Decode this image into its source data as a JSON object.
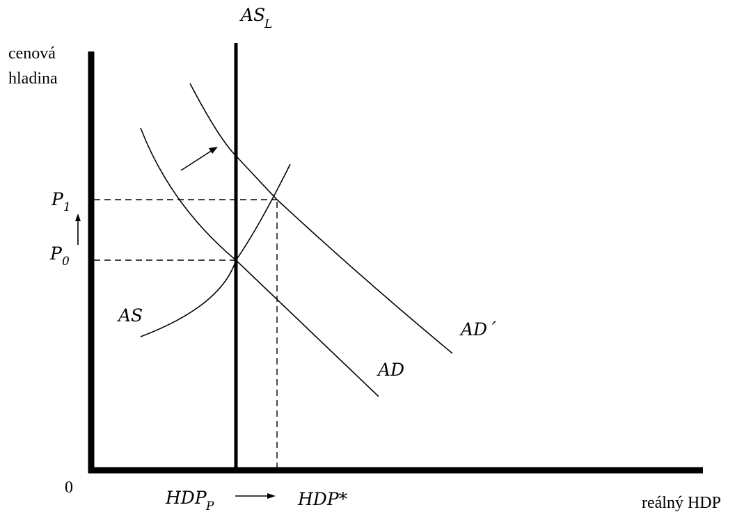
{
  "axes": {
    "y_label_line1": "cenová",
    "y_label_line2": "hladina",
    "x_label": "reálný HDP",
    "origin": "0"
  },
  "curves": {
    "asl": {
      "base": "AS",
      "sub": "L"
    },
    "as": {
      "label": "AS"
    },
    "ad": {
      "label": "AD"
    },
    "ad_shifted": {
      "label": "AD´"
    }
  },
  "price_levels": {
    "p1": {
      "base": "P",
      "sub": "1"
    },
    "p0": {
      "base": "P",
      "sub": "0"
    }
  },
  "output_levels": {
    "hdp_p": {
      "base": "HDP",
      "sub": "P"
    },
    "hdp_star": {
      "label": "HDP*"
    }
  }
}
